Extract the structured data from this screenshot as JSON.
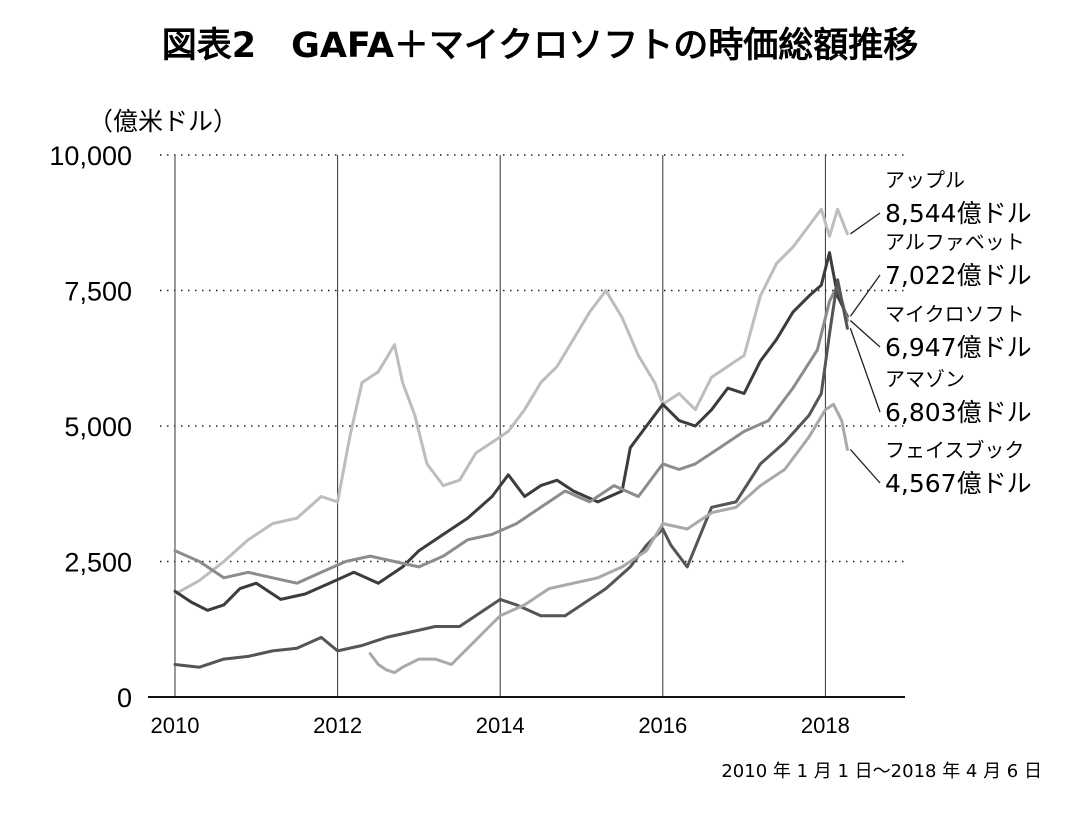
{
  "chart_data": {
    "type": "line",
    "title": "図表2　GAFA＋マイクロソフトの時価総額推移",
    "unit_label": "（億米ドル）",
    "xlabel": "",
    "ylabel": "億米ドル",
    "ylim": [
      0,
      10000
    ],
    "xlim": [
      2010,
      2019
    ],
    "yticks": [
      0,
      2500,
      5000,
      7500,
      10000
    ],
    "ytick_labels": [
      "0",
      "2,500",
      "5,000",
      "7,500",
      "10,000"
    ],
    "xticks": [
      2010,
      2012,
      2014,
      2016,
      2018
    ],
    "xtick_labels": [
      "2010",
      "2012",
      "2014",
      "2016",
      "2018"
    ],
    "grid": "dotted horizontal lines at y ticks, solid vertical lines at x ticks",
    "footnote": "2010 年 1 月 1 日〜2018 年 4 月 6 日",
    "series": [
      {
        "name": "アップル",
        "end_label": "8,544億ドル",
        "color": "#bdbdbd",
        "x": [
          2010.0,
          2010.3,
          2010.6,
          2010.9,
          2011.2,
          2011.5,
          2011.8,
          2012.0,
          2012.15,
          2012.3,
          2012.5,
          2012.7,
          2012.8,
          2012.95,
          2013.1,
          2013.3,
          2013.5,
          2013.7,
          2013.9,
          2014.1,
          2014.3,
          2014.5,
          2014.7,
          2014.9,
          2015.1,
          2015.3,
          2015.5,
          2015.7,
          2015.9,
          2016.0,
          2016.2,
          2016.4,
          2016.6,
          2016.8,
          2017.0,
          2017.2,
          2017.4,
          2017.6,
          2017.8,
          2017.95,
          2018.05,
          2018.15,
          2018.27
        ],
        "y": [
          1900,
          2150,
          2500,
          2900,
          3200,
          3300,
          3700,
          3600,
          4800,
          5800,
          6000,
          6500,
          5800,
          5200,
          4300,
          3900,
          4000,
          4500,
          4700,
          4900,
          5300,
          5800,
          6100,
          6600,
          7100,
          7500,
          7000,
          6300,
          5800,
          5400,
          5600,
          5300,
          5900,
          6100,
          6300,
          7400,
          8000,
          8300,
          8700,
          9000,
          8500,
          9000,
          8544
        ]
      },
      {
        "name": "アルファベット",
        "end_label": "7,022億ドル",
        "color": "#3c3c3c",
        "x": [
          2010.0,
          2010.2,
          2010.4,
          2010.6,
          2010.8,
          2011.0,
          2011.3,
          2011.6,
          2011.9,
          2012.2,
          2012.5,
          2012.8,
          2013.0,
          2013.3,
          2013.6,
          2013.9,
          2014.1,
          2014.3,
          2014.5,
          2014.7,
          2014.9,
          2015.2,
          2015.5,
          2015.6,
          2015.8,
          2016.0,
          2016.2,
          2016.4,
          2016.6,
          2016.8,
          2017.0,
          2017.2,
          2017.4,
          2017.6,
          2017.8,
          2017.95,
          2018.05,
          2018.15,
          2018.27
        ],
        "y": [
          1950,
          1750,
          1600,
          1700,
          2000,
          2100,
          1800,
          1900,
          2100,
          2300,
          2100,
          2400,
          2700,
          3000,
          3300,
          3700,
          4100,
          3700,
          3900,
          4000,
          3800,
          3600,
          3800,
          4600,
          5000,
          5400,
          5100,
          5000,
          5300,
          5700,
          5600,
          6200,
          6600,
          7100,
          7400,
          7600,
          8200,
          7400,
          7022
        ]
      },
      {
        "name": "マイクロソフト",
        "end_label": "6,947億ドル",
        "color": "#8c8c8c",
        "x": [
          2010.0,
          2010.3,
          2010.6,
          2010.9,
          2011.2,
          2011.5,
          2011.8,
          2012.1,
          2012.4,
          2012.7,
          2013.0,
          2013.3,
          2013.6,
          2013.9,
          2014.2,
          2014.5,
          2014.8,
          2015.1,
          2015.4,
          2015.7,
          2016.0,
          2016.2,
          2016.4,
          2016.7,
          2017.0,
          2017.3,
          2017.6,
          2017.9,
          2018.05,
          2018.15,
          2018.27
        ],
        "y": [
          2700,
          2500,
          2200,
          2300,
          2200,
          2100,
          2300,
          2500,
          2600,
          2500,
          2400,
          2600,
          2900,
          3000,
          3200,
          3500,
          3800,
          3600,
          3900,
          3700,
          4300,
          4200,
          4300,
          4600,
          4900,
          5100,
          5700,
          6400,
          7300,
          7600,
          6947
        ]
      },
      {
        "name": "アマゾン",
        "end_label": "6,803億ドル",
        "color": "#555555",
        "x": [
          2010.0,
          2010.3,
          2010.6,
          2010.9,
          2011.2,
          2011.5,
          2011.8,
          2012.0,
          2012.3,
          2012.6,
          2012.9,
          2013.2,
          2013.5,
          2013.8,
          2014.0,
          2014.2,
          2014.5,
          2014.8,
          2015.0,
          2015.3,
          2015.6,
          2015.8,
          2016.0,
          2016.1,
          2016.3,
          2016.6,
          2016.9,
          2017.2,
          2017.5,
          2017.8,
          2017.95,
          2018.05,
          2018.15,
          2018.27
        ],
        "y": [
          600,
          550,
          700,
          750,
          850,
          900,
          1100,
          850,
          950,
          1100,
          1200,
          1300,
          1300,
          1600,
          1800,
          1700,
          1500,
          1500,
          1700,
          2000,
          2400,
          2800,
          3100,
          2800,
          2400,
          3500,
          3600,
          4300,
          4700,
          5200,
          5600,
          6700,
          7700,
          6803
        ]
      },
      {
        "name": "フェイスブック",
        "end_label": "4,567億ドル",
        "color": "#a9a9a9",
        "x": [
          2012.4,
          2012.5,
          2012.6,
          2012.7,
          2012.8,
          2013.0,
          2013.2,
          2013.4,
          2013.6,
          2013.8,
          2014.0,
          2014.3,
          2014.6,
          2014.9,
          2015.2,
          2015.5,
          2015.8,
          2016.0,
          2016.3,
          2016.6,
          2016.9,
          2017.2,
          2017.5,
          2017.8,
          2018.0,
          2018.1,
          2018.2,
          2018.27
        ],
        "y": [
          800,
          600,
          500,
          450,
          550,
          700,
          700,
          600,
          900,
          1200,
          1500,
          1700,
          2000,
          2100,
          2200,
          2400,
          2700,
          3200,
          3100,
          3400,
          3500,
          3900,
          4200,
          4800,
          5300,
          5400,
          5100,
          4567
        ]
      }
    ]
  }
}
